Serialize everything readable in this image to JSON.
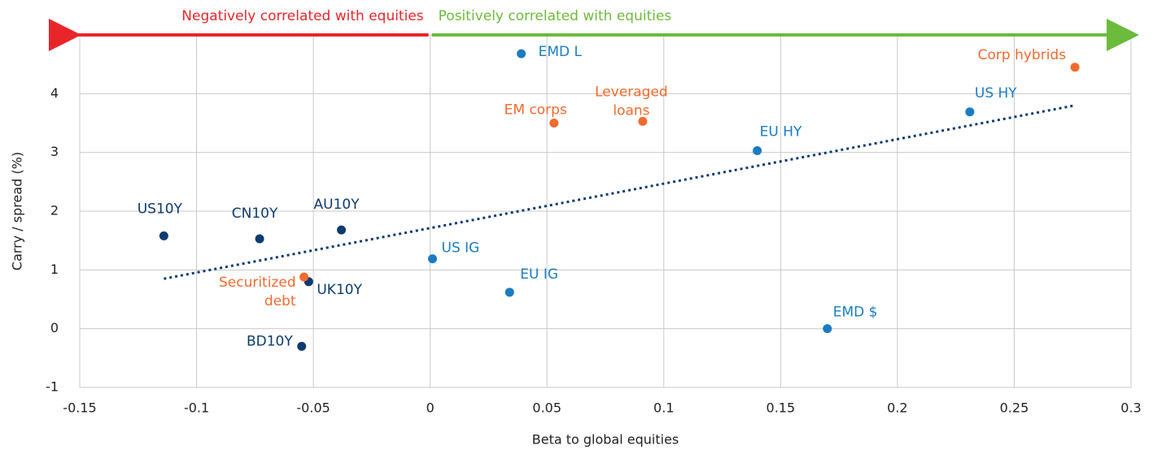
{
  "chart_data": {
    "type": "scatter",
    "xlabel": "Beta to global equities",
    "ylabel": "Carry / spread (%)",
    "xlim": [
      -0.15,
      0.3
    ],
    "xticks": [
      -0.15,
      -0.1,
      -0.05,
      0,
      0.05,
      0.1,
      0.15,
      0.2,
      0.25,
      0.3
    ],
    "ylim": [
      -1,
      5
    ],
    "yticks": [
      -1,
      0,
      1,
      2,
      3,
      4,
      5
    ],
    "grid": true,
    "annotations": [
      {
        "text": "Negatively correlated with equities",
        "color": "#e8262a"
      },
      {
        "text": "Positively correlated with equities",
        "color": "#6cbb3c"
      }
    ],
    "points": [
      {
        "label": [
          "US10Y"
        ],
        "x": -0.114,
        "y": 1.58,
        "color": "#0d3b6e"
      },
      {
        "label": [
          "CN10Y"
        ],
        "x": -0.073,
        "y": 1.53,
        "color": "#0d3b6e"
      },
      {
        "label": [
          "AU10Y"
        ],
        "x": -0.038,
        "y": 1.68,
        "color": "#0d3b6e"
      },
      {
        "label": [
          "UK10Y"
        ],
        "x": -0.052,
        "y": 0.8,
        "color": "#0d3b6e"
      },
      {
        "label": [
          "BD10Y"
        ],
        "x": -0.055,
        "y": -0.3,
        "color": "#0d3b6e"
      },
      {
        "label": [
          "Securitized",
          "debt"
        ],
        "x": -0.054,
        "y": 0.88,
        "color": "#f26a2e"
      },
      {
        "label": [
          "US IG"
        ],
        "x": 0.001,
        "y": 1.19,
        "color": "#1a7cc1"
      },
      {
        "label": [
          "EU IG"
        ],
        "x": 0.034,
        "y": 0.62,
        "color": "#1a7cc1"
      },
      {
        "label": [
          "EMD L"
        ],
        "x": 0.039,
        "y": 4.68,
        "color": "#1a7cc1"
      },
      {
        "label": [
          "EM corps"
        ],
        "x": 0.053,
        "y": 3.5,
        "color": "#f26a2e"
      },
      {
        "label": [
          "Leveraged",
          "loans"
        ],
        "x": 0.091,
        "y": 3.53,
        "color": "#f26a2e"
      },
      {
        "label": [
          "EU HY"
        ],
        "x": 0.14,
        "y": 3.03,
        "color": "#1a7cc1"
      },
      {
        "label": [
          "EMD $"
        ],
        "x": 0.17,
        "y": 0,
        "color": "#1a7cc1"
      },
      {
        "label": [
          "US HY"
        ],
        "x": 0.231,
        "y": 3.69,
        "color": "#1a7cc1"
      },
      {
        "label": [
          "Corp hybrids"
        ],
        "x": 0.276,
        "y": 4.45,
        "color": "#f26a2e"
      }
    ],
    "trendline": {
      "x": [
        -0.114,
        0.276
      ],
      "y": [
        0.85,
        3.8
      ],
      "color": "#0d3b6e"
    }
  }
}
